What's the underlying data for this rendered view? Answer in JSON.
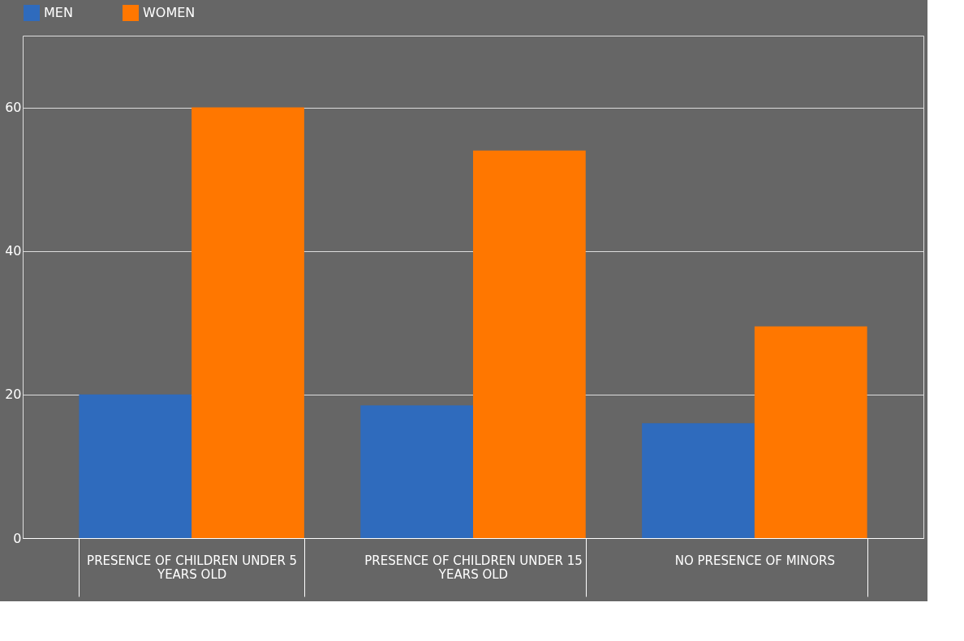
{
  "chart_data": {
    "type": "bar",
    "categories": [
      "PRESENCE OF CHILDREN UNDER 5 YEARS OLD",
      "PRESENCE OF CHILDREN UNDER 15 YEARS OLD",
      "NO PRESENCE OF MINORS"
    ],
    "series": [
      {
        "name": "MEN",
        "color": "#2f6bbd",
        "values": [
          20,
          18.5,
          16
        ]
      },
      {
        "name": "WOMEN",
        "color": "#ff7700",
        "values": [
          60,
          54,
          29.5
        ]
      }
    ],
    "ylim": [
      0,
      70
    ],
    "yticks": [
      0,
      20,
      40,
      60
    ],
    "grid": "y",
    "legend": "top"
  }
}
